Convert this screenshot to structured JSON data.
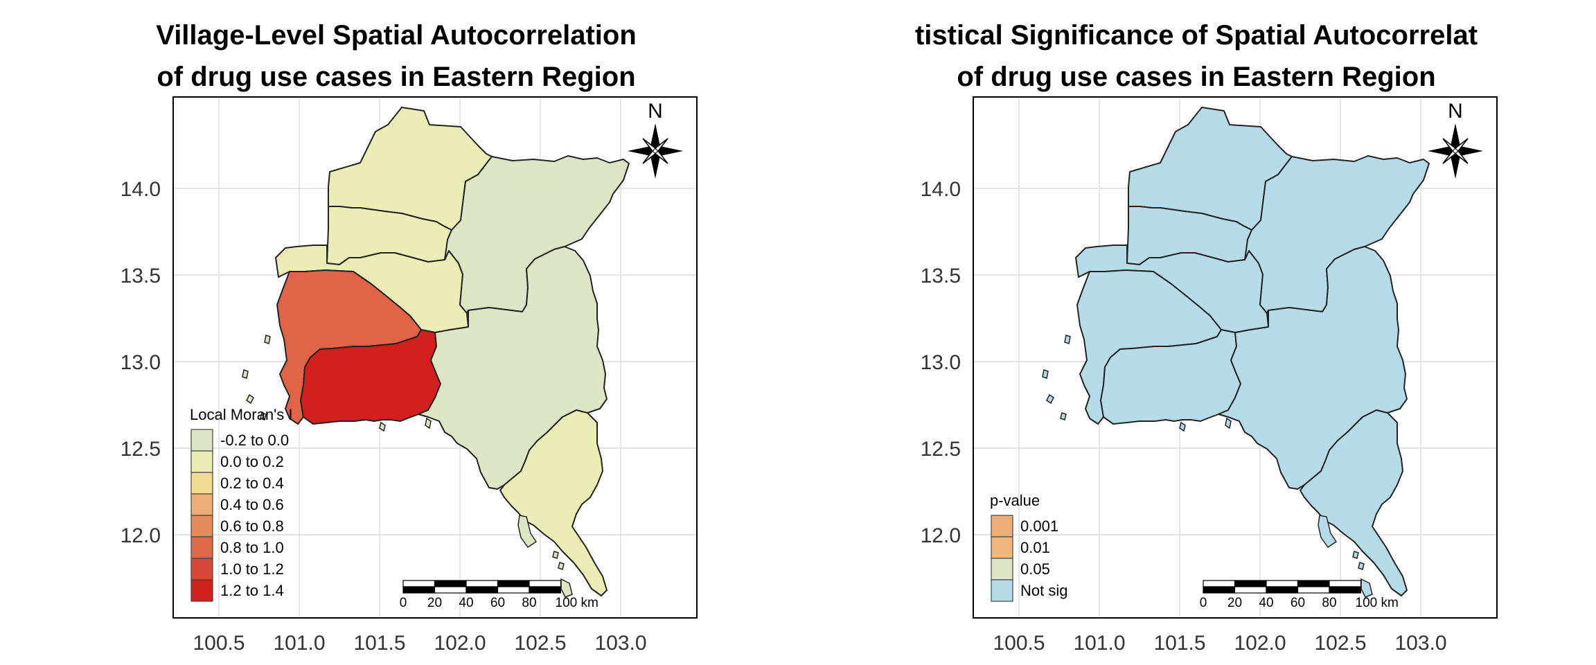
{
  "maps": [
    {
      "title_line1": "Village-Level Spatial Autocorrelation",
      "title_line2": "of drug use cases in Eastern Region",
      "legend": {
        "title": "Local Moran's I",
        "items": [
          {
            "label": "-0.2 to 0.0",
            "color": "#dde6c4"
          },
          {
            "label": "0.0 to 0.2",
            "color": "#ebedb4"
          },
          {
            "label": "0.2 to 0.4",
            "color": "#f0dc92"
          },
          {
            "label": "0.4 to 0.6",
            "color": "#eeae78"
          },
          {
            "label": "0.6 to 0.8",
            "color": "#e58a5a"
          },
          {
            "label": "0.8 to 1.0",
            "color": "#de6a4a"
          },
          {
            "label": "1.0 to 1.2",
            "color": "#d7473a"
          },
          {
            "label": "1.2 to 1.4",
            "color": "#d1201e"
          }
        ]
      },
      "region_colors": {
        "nw_top": "#ebedb4",
        "north_mid": "#ebedb4",
        "west_mid": "#ebedb4",
        "east_upper": "#dde6c4",
        "sw_coast": "#e06448",
        "center_south": "#d21f1f",
        "east_lower": "#dde6c4",
        "se_tail": "#ebedb4"
      }
    },
    {
      "title_line1": "tistical Significance of Spatial Autocorrelat",
      "title_line2": "of drug use cases in Eastern Region",
      "legend": {
        "title": "p-value",
        "items": [
          {
            "label": "0.001",
            "color": "#eeae78"
          },
          {
            "label": "0.01",
            "color": "#f0b880"
          },
          {
            "label": "0.05",
            "color": "#dde6c4"
          },
          {
            "label": "Not sig",
            "color": "#b5dbe8"
          }
        ]
      },
      "region_colors": {
        "nw_top": "#b5dbe8",
        "north_mid": "#b5dbe8",
        "west_mid": "#b5dbe8",
        "east_upper": "#b5dbe8",
        "sw_coast": "#b5dbe8",
        "center_south": "#b5dbe8",
        "east_lower": "#b5dbe8",
        "se_tail": "#b5dbe8"
      }
    }
  ],
  "axes": {
    "x_ticks": [
      "100.5",
      "101.0",
      "101.5",
      "102.0",
      "102.5",
      "103.0"
    ],
    "y_ticks": [
      "14.0",
      "13.5",
      "13.0",
      "12.5",
      "12.0"
    ]
  },
  "north_label": "N",
  "scalebar": {
    "labels": [
      "0",
      "20",
      "40",
      "60",
      "80",
      "100 km"
    ]
  }
}
